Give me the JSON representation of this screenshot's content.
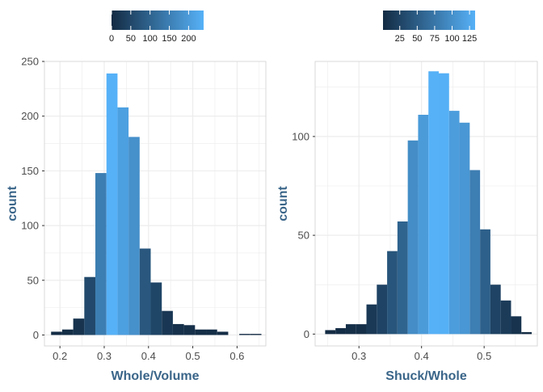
{
  "chart_data": [
    {
      "type": "bar",
      "subtype": "histogram",
      "xlabel": "Whole/Volume",
      "ylabel": "count",
      "xlim": [
        0.165,
        0.665
      ],
      "ylim": [
        -10,
        250
      ],
      "xticks": [
        0.2,
        0.3,
        0.4,
        0.5,
        0.6
      ],
      "xtick_labels": [
        "0.2",
        "0.3",
        "0.4",
        "0.5",
        "0.6"
      ],
      "yticks": [
        0,
        50,
        100,
        150,
        200,
        250
      ],
      "ytick_labels": [
        "0",
        "50",
        "100",
        "150",
        "200",
        "250"
      ],
      "bins": [
        {
          "start": 0.18,
          "end": 0.205,
          "count": 3
        },
        {
          "start": 0.205,
          "end": 0.23,
          "count": 5
        },
        {
          "start": 0.23,
          "end": 0.255,
          "count": 15
        },
        {
          "start": 0.255,
          "end": 0.28,
          "count": 53
        },
        {
          "start": 0.28,
          "end": 0.305,
          "count": 148
        },
        {
          "start": 0.305,
          "end": 0.33,
          "count": 239
        },
        {
          "start": 0.33,
          "end": 0.355,
          "count": 208
        },
        {
          "start": 0.355,
          "end": 0.38,
          "count": 181
        },
        {
          "start": 0.38,
          "end": 0.405,
          "count": 79
        },
        {
          "start": 0.405,
          "end": 0.43,
          "count": 48
        },
        {
          "start": 0.43,
          "end": 0.455,
          "count": 22
        },
        {
          "start": 0.455,
          "end": 0.48,
          "count": 10
        },
        {
          "start": 0.48,
          "end": 0.505,
          "count": 9
        },
        {
          "start": 0.505,
          "end": 0.53,
          "count": 5
        },
        {
          "start": 0.53,
          "end": 0.555,
          "count": 5
        },
        {
          "start": 0.555,
          "end": 0.58,
          "count": 3
        },
        {
          "start": 0.58,
          "end": 0.605,
          "count": 0
        },
        {
          "start": 0.605,
          "end": 0.63,
          "count": 1
        },
        {
          "start": 0.63,
          "end": 0.655,
          "count": 1
        }
      ],
      "fill_scale": {
        "low_color": "#132b43",
        "high_color": "#56b1f7",
        "min": 0,
        "max": 239,
        "legend_breaks": [
          0,
          50,
          100,
          150,
          200
        ],
        "legend_labels": [
          "0",
          "50",
          "100",
          "150",
          "200"
        ]
      },
      "legend_position": "top",
      "grid": true
    },
    {
      "type": "bar",
      "subtype": "histogram",
      "xlabel": "Shuck/Whole",
      "ylabel": "count",
      "xlim": [
        0.23,
        0.585
      ],
      "ylim": [
        -6,
        138
      ],
      "xticks": [
        0.3,
        0.4,
        0.5
      ],
      "xtick_labels": [
        "0.3",
        "0.4",
        "0.5"
      ],
      "yticks": [
        0,
        50,
        100
      ],
      "ytick_labels": [
        "0",
        "50",
        "100"
      ],
      "bins": [
        {
          "start": 0.246,
          "end": 0.2625,
          "count": 2
        },
        {
          "start": 0.2625,
          "end": 0.279,
          "count": 3
        },
        {
          "start": 0.279,
          "end": 0.2955,
          "count": 5
        },
        {
          "start": 0.2955,
          "end": 0.312,
          "count": 5
        },
        {
          "start": 0.312,
          "end": 0.3285,
          "count": 15
        },
        {
          "start": 0.3285,
          "end": 0.345,
          "count": 25
        },
        {
          "start": 0.345,
          "end": 0.3615,
          "count": 42
        },
        {
          "start": 0.3615,
          "end": 0.378,
          "count": 57
        },
        {
          "start": 0.378,
          "end": 0.3945,
          "count": 98
        },
        {
          "start": 0.3945,
          "end": 0.411,
          "count": 111
        },
        {
          "start": 0.411,
          "end": 0.4275,
          "count": 133
        },
        {
          "start": 0.4275,
          "end": 0.444,
          "count": 132
        },
        {
          "start": 0.444,
          "end": 0.4605,
          "count": 113
        },
        {
          "start": 0.4605,
          "end": 0.477,
          "count": 107
        },
        {
          "start": 0.477,
          "end": 0.4935,
          "count": 83
        },
        {
          "start": 0.4935,
          "end": 0.51,
          "count": 53
        },
        {
          "start": 0.51,
          "end": 0.5265,
          "count": 25
        },
        {
          "start": 0.5265,
          "end": 0.543,
          "count": 17
        },
        {
          "start": 0.543,
          "end": 0.5595,
          "count": 9
        },
        {
          "start": 0.5595,
          "end": 0.576,
          "count": 1
        }
      ],
      "fill_scale": {
        "low_color": "#132b43",
        "high_color": "#56b1f7",
        "min": 1,
        "max": 133,
        "legend_breaks": [
          25,
          50,
          75,
          100,
          125
        ],
        "legend_labels": [
          "25",
          "50",
          "75",
          "100",
          "125"
        ]
      },
      "legend_position": "top",
      "grid": true
    }
  ],
  "style": {
    "axis_title_color": "#3a6589",
    "tick_label_color": "#4d4d4d",
    "grid_color": "#ebebeb",
    "panel_border_color": "#d9d9d9"
  }
}
